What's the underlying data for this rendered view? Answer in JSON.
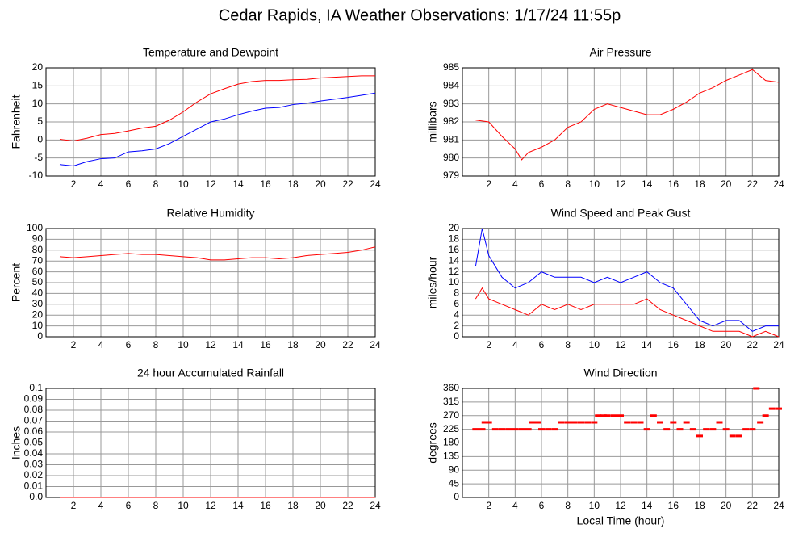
{
  "title": "Cedar Rapids, IA Weather Observations: 1/17/24 11:55p",
  "chart_data": [
    {
      "type": "line",
      "title": "Temperature and Dewpoint",
      "ylabel": "Fahrenheit",
      "x": [
        1,
        2,
        3,
        4,
        5,
        6,
        7,
        8,
        9,
        10,
        11,
        12,
        13,
        14,
        15,
        16,
        17,
        18,
        19,
        20,
        21,
        22,
        23,
        24
      ],
      "series": [
        {
          "color": "#ff0000",
          "values": [
            0.2,
            -0.3,
            0.5,
            1.5,
            1.8,
            2.5,
            3.3,
            3.8,
            5.5,
            7.8,
            10.5,
            12.8,
            14.2,
            15.5,
            16.2,
            16.5,
            16.5,
            16.7,
            16.8,
            17.2,
            17.4,
            17.6,
            17.8,
            17.8
          ]
        },
        {
          "color": "#0000ff",
          "values": [
            -6.8,
            -7.2,
            -6.0,
            -5.2,
            -5.0,
            -3.3,
            -3.0,
            -2.5,
            -1.0,
            1.0,
            3.0,
            5.0,
            5.8,
            7.0,
            8.0,
            8.8,
            9.0,
            9.8,
            10.2,
            10.8,
            11.3,
            11.8,
            12.4,
            13.0
          ]
        }
      ],
      "xlim": [
        0,
        24
      ],
      "xticks": [
        2,
        4,
        6,
        8,
        10,
        12,
        14,
        16,
        18,
        20,
        22,
        24
      ],
      "ylim": [
        -10,
        20
      ],
      "yticks": [
        -10,
        -5,
        0,
        5,
        10,
        15,
        20
      ],
      "grid": true
    },
    {
      "type": "line",
      "title": "Air Pressure",
      "ylabel": "millibars",
      "x": [
        1,
        2,
        3,
        4,
        4.5,
        5,
        6,
        7,
        8,
        9,
        10,
        11,
        12,
        13,
        14,
        15,
        16,
        17,
        18,
        19,
        20,
        21,
        22,
        23,
        24
      ],
      "series": [
        {
          "color": "#ff0000",
          "values": [
            982.1,
            982.0,
            981.2,
            980.5,
            979.9,
            980.3,
            980.6,
            981.0,
            981.7,
            982.0,
            982.7,
            983.0,
            982.8,
            982.6,
            982.4,
            982.4,
            982.7,
            983.1,
            983.6,
            983.9,
            984.3,
            984.6,
            984.9,
            984.3,
            984.2
          ]
        }
      ],
      "xlim": [
        0,
        24
      ],
      "xticks": [
        2,
        4,
        6,
        8,
        10,
        12,
        14,
        16,
        18,
        20,
        22,
        24
      ],
      "ylim": [
        979,
        985
      ],
      "yticks": [
        979,
        980,
        981,
        982,
        983,
        984,
        985
      ],
      "grid": true
    },
    {
      "type": "line",
      "title": "Relative Humidity",
      "ylabel": "Percent",
      "x": [
        1,
        2,
        3,
        4,
        5,
        6,
        7,
        8,
        9,
        10,
        11,
        12,
        13,
        14,
        15,
        16,
        17,
        18,
        19,
        20,
        21,
        22,
        23,
        24
      ],
      "series": [
        {
          "color": "#ff0000",
          "values": [
            74,
            73,
            74,
            75,
            76,
            77,
            76,
            76,
            75,
            74,
            73,
            71,
            71,
            72,
            73,
            73,
            72,
            73,
            75,
            76,
            77,
            78,
            80,
            83
          ]
        }
      ],
      "xlim": [
        0,
        24
      ],
      "xticks": [
        2,
        4,
        6,
        8,
        10,
        12,
        14,
        16,
        18,
        20,
        22,
        24
      ],
      "ylim": [
        0,
        100
      ],
      "yticks": [
        0,
        10,
        20,
        30,
        40,
        50,
        60,
        70,
        80,
        90,
        100
      ],
      "grid": true
    },
    {
      "type": "line",
      "title": "Wind Speed and Peak Gust",
      "ylabel": "miles/hour",
      "x": [
        1,
        1.5,
        2,
        3,
        4,
        5,
        6,
        7,
        8,
        9,
        10,
        11,
        12,
        13,
        14,
        15,
        16,
        17,
        18,
        19,
        20,
        21,
        22,
        23,
        24
      ],
      "series": [
        {
          "color": "#ff0000",
          "values": [
            7,
            9,
            7,
            6,
            5,
            4,
            6,
            5,
            6,
            5,
            6,
            6,
            6,
            6,
            7,
            5,
            4,
            3,
            2,
            1,
            1,
            1,
            0,
            1,
            0
          ]
        },
        {
          "color": "#0000ff",
          "values": [
            13,
            20,
            15,
            11,
            9,
            10,
            12,
            11,
            11,
            11,
            10,
            11,
            10,
            11,
            12,
            10,
            9,
            6,
            3,
            2,
            3,
            3,
            1,
            2,
            2
          ]
        }
      ],
      "xlim": [
        0,
        24
      ],
      "xticks": [
        2,
        4,
        6,
        8,
        10,
        12,
        14,
        16,
        18,
        20,
        22,
        24
      ],
      "ylim": [
        0,
        20
      ],
      "yticks": [
        0,
        2,
        4,
        6,
        8,
        10,
        12,
        14,
        16,
        18,
        20
      ],
      "grid": true
    },
    {
      "type": "line",
      "title": "24 hour Accumulated Rainfall",
      "ylabel": "Inches",
      "x": [
        1,
        24
      ],
      "series": [
        {
          "color": "#ff0000",
          "values": [
            0,
            0
          ]
        }
      ],
      "xlim": [
        0,
        24
      ],
      "xticks": [
        2,
        4,
        6,
        8,
        10,
        12,
        14,
        16,
        18,
        20,
        22,
        24
      ],
      "ylim": [
        0,
        0.1
      ],
      "yticks": [
        {
          "value": 0,
          "label": "0.0"
        },
        0.01,
        0.02,
        0.03,
        0.04,
        0.05,
        0.06,
        0.07,
        0.08,
        0.09,
        0.1
      ],
      "grid": true
    },
    {
      "type": "scatter",
      "title": "Wind Direction",
      "ylabel": "degrees",
      "xlabel": "Local Time (hour)",
      "x": [
        1,
        1.5,
        1.7,
        2,
        2.5,
        3,
        3.5,
        4,
        4.5,
        5,
        5.3,
        5.7,
        6,
        6.5,
        7,
        7.5,
        8,
        8.5,
        9,
        9.5,
        10,
        10.3,
        10.7,
        11,
        11.5,
        12,
        12.5,
        13,
        13.5,
        14,
        14.5,
        15,
        15.5,
        16,
        16.5,
        17,
        17.5,
        18,
        18.5,
        19,
        19.5,
        20,
        20.5,
        21,
        21.5,
        22,
        22.3,
        22.6,
        23,
        23.5,
        24
      ],
      "series": [
        {
          "color": "#ff0000",
          "values": [
            225,
            225,
            248,
            248,
            225,
            225,
            225,
            225,
            225,
            225,
            248,
            248,
            225,
            225,
            225,
            248,
            248,
            248,
            248,
            248,
            248,
            270,
            270,
            270,
            270,
            270,
            248,
            248,
            248,
            225,
            270,
            248,
            225,
            248,
            225,
            248,
            225,
            203,
            225,
            225,
            248,
            225,
            203,
            203,
            225,
            225,
            360,
            248,
            270,
            293,
            293
          ]
        }
      ],
      "xlim": [
        0,
        24
      ],
      "xticks": [
        2,
        4,
        6,
        8,
        10,
        12,
        14,
        16,
        18,
        20,
        22,
        24
      ],
      "ylim": [
        0,
        360
      ],
      "yticks": [
        0,
        45,
        90,
        135,
        180,
        225,
        270,
        315,
        360
      ],
      "grid": true
    }
  ]
}
